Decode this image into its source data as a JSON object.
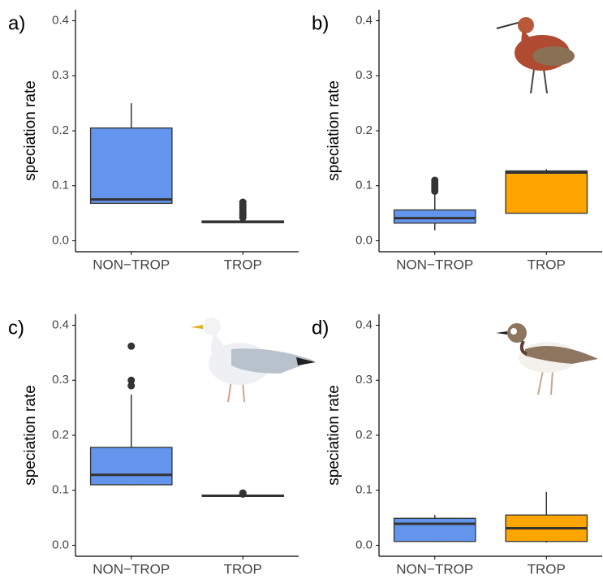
{
  "chart_data": [
    {
      "type": "box",
      "label": "a)",
      "ylabel": "speciation rate",
      "categories": [
        "NON−TROP",
        "TROP"
      ],
      "ylim": [
        -0.02,
        0.42
      ],
      "yticks": [
        {
          "value": 0,
          "label": "0.0"
        },
        0.1,
        0.2,
        0.3,
        0.4
      ],
      "boxes": [
        {
          "color": "#6495ed",
          "low": 0.068,
          "q1": 0.068,
          "median": 0.075,
          "q3": 0.205,
          "high": 0.25,
          "outliers": []
        },
        {
          "color": "#6495ed",
          "low": 0.033,
          "q1": 0.033,
          "median": 0.034,
          "q3": 0.036,
          "high": 0.038,
          "outliers": [
            0.042,
            0.046,
            0.05,
            0.055,
            0.06,
            0.065,
            0.07
          ]
        }
      ]
    },
    {
      "type": "box",
      "label": "b)",
      "ylabel": "speciation rate",
      "categories": [
        "NON−TROP",
        "TROP"
      ],
      "ylim": [
        -0.02,
        0.42
      ],
      "yticks": [
        {
          "value": 0,
          "label": "0.0"
        },
        0.1,
        0.2,
        0.3,
        0.4
      ],
      "boxes": [
        {
          "color": "#6495ed",
          "low": 0.019,
          "q1": 0.032,
          "median": 0.041,
          "q3": 0.056,
          "high": 0.085,
          "outliers": [
            0.09,
            0.095,
            0.1,
            0.105,
            0.11
          ]
        },
        {
          "color": "#ffa500",
          "low": 0.05,
          "q1": 0.05,
          "median": 0.124,
          "q3": 0.127,
          "high": 0.13,
          "outliers": []
        }
      ]
    },
    {
      "type": "box",
      "label": "c)",
      "ylabel": "speciation rate",
      "categories": [
        "NON−TROP",
        "TROP"
      ],
      "ylim": [
        -0.02,
        0.42
      ],
      "yticks": [
        {
          "value": 0,
          "label": "0.0"
        },
        0.1,
        0.2,
        0.3,
        0.4
      ],
      "boxes": [
        {
          "color": "#6495ed",
          "low": 0.109,
          "q1": 0.11,
          "median": 0.128,
          "q3": 0.178,
          "high": 0.274,
          "outliers": [
            0.29,
            0.3,
            0.362
          ]
        },
        {
          "color": "#6495ed",
          "low": 0.089,
          "q1": 0.089,
          "median": 0.09,
          "q3": 0.091,
          "high": 0.092,
          "outliers": [
            0.093,
            0.095
          ]
        }
      ]
    },
    {
      "type": "box",
      "label": "d)",
      "ylabel": "speciation rate",
      "categories": [
        "NON−TROP",
        "TROP"
      ],
      "ylim": [
        -0.02,
        0.42
      ],
      "yticks": [
        {
          "value": 0,
          "label": "0.0"
        },
        0.1,
        0.2,
        0.3,
        0.4
      ],
      "boxes": [
        {
          "color": "#6495ed",
          "low": 0.006,
          "q1": 0.007,
          "median": 0.039,
          "q3": 0.049,
          "high": 0.055,
          "outliers": []
        },
        {
          "color": "#ffa500",
          "low": 0.005,
          "q1": 0.007,
          "median": 0.031,
          "q3": 0.055,
          "high": 0.097,
          "outliers": []
        }
      ]
    }
  ]
}
